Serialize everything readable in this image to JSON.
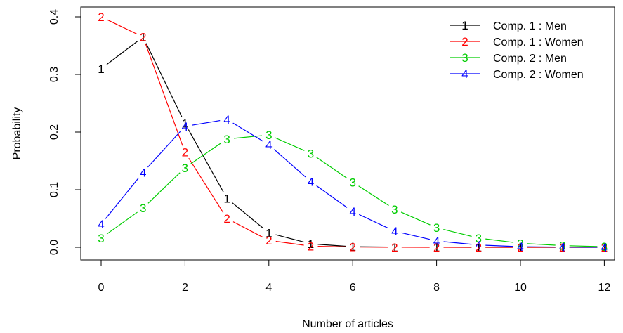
{
  "chart_data": {
    "type": "line",
    "title": "",
    "xlabel": "Number of articles",
    "ylabel": "Probability",
    "xlim": [
      0,
      12
    ],
    "ylim": [
      0,
      0.4
    ],
    "x": [
      0,
      1,
      2,
      3,
      4,
      5,
      6,
      7,
      8,
      9,
      10,
      11,
      12
    ],
    "x_ticks": [
      "0",
      "2",
      "4",
      "6",
      "8",
      "10",
      "12"
    ],
    "y_ticks": [
      "0.0",
      "0.1",
      "0.2",
      "0.3",
      "0.4"
    ],
    "grid": false,
    "legend_position": "top-right",
    "series": [
      {
        "name": "Comp. 1 : Men",
        "symbol": "1",
        "color": "#000000",
        "values": [
          0.31,
          0.365,
          0.215,
          0.085,
          0.025,
          0.006,
          0.001,
          0.0003,
          0.0001,
          0.0,
          0.0,
          0.0,
          0.0
        ]
      },
      {
        "name": "Comp. 1 : Women",
        "symbol": "2",
        "color": "#ff0000",
        "values": [
          0.4,
          0.365,
          0.165,
          0.05,
          0.012,
          0.002,
          0.0005,
          0.0001,
          0.0,
          0.0,
          0.0,
          0.0,
          0.0
        ]
      },
      {
        "name": "Comp. 2 : Men",
        "symbol": "3",
        "color": "#00cd00",
        "values": [
          0.016,
          0.068,
          0.138,
          0.188,
          0.195,
          0.163,
          0.113,
          0.066,
          0.034,
          0.016,
          0.007,
          0.003,
          0.001
        ]
      },
      {
        "name": "Comp. 2 : Women",
        "symbol": "4",
        "color": "#0000ff",
        "values": [
          0.04,
          0.13,
          0.21,
          0.222,
          0.178,
          0.114,
          0.062,
          0.028,
          0.011,
          0.004,
          0.001,
          0.0004,
          0.0001
        ]
      }
    ]
  }
}
